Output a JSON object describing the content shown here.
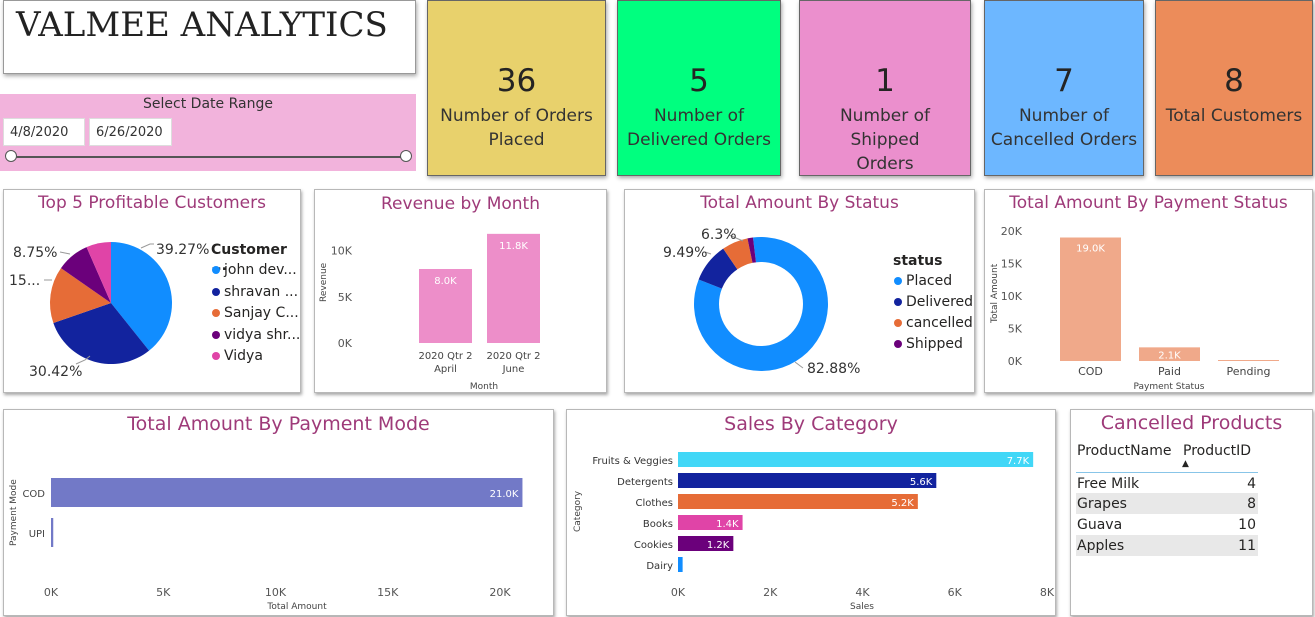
{
  "brand": {
    "title": "VALMEE ANALYTICS"
  },
  "date_range": {
    "label": "Select Date Range",
    "start": "4/8/2020",
    "end": "6/26/2020"
  },
  "kpis": [
    {
      "value": "36",
      "line1": "Number of Orders",
      "line2": "Placed",
      "color": "#e8d16c"
    },
    {
      "value": "5",
      "line1": "Number of",
      "line2": "Delivered Orders",
      "color": "#00ff7f"
    },
    {
      "value": "1",
      "line1": "Number of Shipped",
      "line2": "Orders",
      "color": "#eb8fcd"
    },
    {
      "value": "7",
      "line1": "Number of",
      "line2": "Cancelled Orders",
      "color": "#6db7ff"
    },
    {
      "value": "8",
      "line1": "Total Customers",
      "line2": "",
      "color": "#ec8c5a"
    }
  ],
  "top_customers": {
    "title": "Top 5 Profitable Customers",
    "legend_title": "Customer ...",
    "labels": {
      "l1": "39.27%",
      "l2": "30.42%",
      "l3": "15...",
      "l4": "8.75%"
    },
    "items": [
      {
        "name": "john dev...",
        "color": "#118dff"
      },
      {
        "name": "shravan ...",
        "color": "#12239e"
      },
      {
        "name": "Sanjay C...",
        "color": "#e66c37"
      },
      {
        "name": "vidya shr...",
        "color": "#6b007b"
      },
      {
        "name": "Vidya",
        "color": "#e044a7"
      }
    ]
  },
  "chart_data": [
    {
      "type": "pie",
      "title": "Top 5 Profitable Customers",
      "categories": [
        "john dev...",
        "shravan ...",
        "Sanjay C...",
        "vidya shr...",
        "Vidya"
      ],
      "values": [
        39.27,
        30.42,
        15.0,
        8.75,
        6.56
      ],
      "legend": "right"
    },
    {
      "type": "bar",
      "title": "Revenue by Month",
      "categories": [
        "2020 Qtr 2 April",
        "2020 Qtr 2 June"
      ],
      "values": [
        8.0,
        11.8
      ],
      "data_labels": [
        "8.0K",
        "11.8K"
      ],
      "xlabel": "Month",
      "ylabel": "Revenue",
      "ylim": [
        0,
        12
      ],
      "ticks": [
        "0K",
        "5K",
        "10K"
      ]
    },
    {
      "type": "pie",
      "title": "Total Amount By Status",
      "categories": [
        "Placed",
        "Delivered",
        "cancelled",
        "Shipped"
      ],
      "values": [
        82.88,
        9.49,
        6.3,
        1.33
      ],
      "legend": "right"
    },
    {
      "type": "bar",
      "title": "Total Amount By Payment Status",
      "categories": [
        "COD",
        "Paid",
        "Pending"
      ],
      "values": [
        19.0,
        2.1,
        0.1
      ],
      "data_labels": [
        "19.0K",
        "2.1K",
        ""
      ],
      "xlabel": "Payment Status",
      "ylabel": "Total Amount",
      "ylim": [
        0,
        20
      ],
      "ticks": [
        "0K",
        "5K",
        "10K",
        "15K",
        "20K"
      ]
    },
    {
      "type": "bar",
      "title": "Total Amount By Payment Mode",
      "categories": [
        "COD",
        "UPI"
      ],
      "values": [
        21.0,
        0.1
      ],
      "data_labels": [
        "21.0K",
        ""
      ],
      "xlabel": "Total Amount",
      "ylabel": "Payment Mode",
      "xlim": [
        0,
        22
      ],
      "ticks": [
        "0K",
        "5K",
        "10K",
        "15K",
        "20K"
      ]
    },
    {
      "type": "bar",
      "title": "Sales By Category",
      "categories": [
        "Fruits & Veggies",
        "Detergents",
        "Clothes",
        "Books",
        "Cookies",
        "Dairy"
      ],
      "values": [
        7.7,
        5.6,
        5.2,
        1.4,
        1.2,
        0.1
      ],
      "data_labels": [
        "7.7K",
        "5.6K",
        "5.2K",
        "1.4K",
        "1.2K",
        ""
      ],
      "xlabel": "Sales",
      "ylabel": "Category",
      "xlim": [
        0,
        8
      ],
      "ticks": [
        "0K",
        "2K",
        "4K",
        "6K",
        "8K"
      ]
    }
  ],
  "revenue": {
    "title": "Revenue by Month",
    "ylabel": "Revenue",
    "xlabel": "Month",
    "ticks": [
      "0K",
      "5K",
      "10K"
    ],
    "bars": [
      {
        "l1": "2020 Qtr 2",
        "l2": "April",
        "value": 8.0,
        "label": "8.0K"
      },
      {
        "l1": "2020 Qtr 2",
        "l2": "June",
        "value": 11.8,
        "label": "11.8K"
      }
    ],
    "color": "#ed8ec9"
  },
  "status": {
    "title": "Total Amount By Status",
    "legend_title": "status",
    "labels": {
      "placed": "82.88%",
      "delivered": "9.49%",
      "cancelled": "6.3%"
    },
    "items": [
      {
        "name": "Placed",
        "value": 82.88,
        "color": "#118dff"
      },
      {
        "name": "Delivered",
        "value": 9.49,
        "color": "#12239e"
      },
      {
        "name": "cancelled",
        "value": 6.3,
        "color": "#e66c37"
      },
      {
        "name": "Shipped",
        "value": 1.33,
        "color": "#6b007b"
      }
    ]
  },
  "payment_status": {
    "title": "Total Amount By Payment Status",
    "ylabel": "Total Amount",
    "xlabel": "Payment Status",
    "ticks": [
      "0K",
      "5K",
      "10K",
      "15K",
      "20K"
    ],
    "color": "#f0a98a",
    "bars": [
      {
        "name": "COD",
        "value": 19.0,
        "label": "19.0K"
      },
      {
        "name": "Paid",
        "value": 2.1,
        "label": "2.1K"
      },
      {
        "name": "Pending",
        "value": 0.1,
        "label": ""
      }
    ]
  },
  "payment_mode": {
    "title": "Total Amount By Payment Mode",
    "ylabel": "Payment Mode",
    "xlabel": "Total Amount",
    "ticks": [
      "0K",
      "5K",
      "10K",
      "15K",
      "20K"
    ],
    "color": "#7279c7",
    "bars": [
      {
        "name": "COD",
        "value": 21.0,
        "label": "21.0K"
      },
      {
        "name": "UPI",
        "value": 0.1,
        "label": ""
      }
    ]
  },
  "category": {
    "title": "Sales By Category",
    "ylabel": "Category",
    "xlabel": "Sales",
    "ticks": [
      "0K",
      "2K",
      "4K",
      "6K",
      "8K"
    ],
    "bars": [
      {
        "name": "Fruits & Veggies",
        "value": 7.7,
        "label": "7.7K",
        "color": "#41d7f7"
      },
      {
        "name": "Detergents",
        "value": 5.6,
        "label": "5.6K",
        "color": "#12239e"
      },
      {
        "name": "Clothes",
        "value": 5.2,
        "label": "5.2K",
        "color": "#e66c37"
      },
      {
        "name": "Books",
        "value": 1.4,
        "label": "1.4K",
        "color": "#e044a7"
      },
      {
        "name": "Cookies",
        "value": 1.2,
        "label": "1.2K",
        "color": "#6b007b"
      },
      {
        "name": "Dairy",
        "value": 0.1,
        "label": "",
        "color": "#118dff"
      }
    ]
  },
  "cancelled": {
    "title": "Cancelled Products",
    "col1": "ProductName",
    "col2": "ProductID",
    "rows": [
      {
        "name": "Free Milk",
        "id": "4"
      },
      {
        "name": "Grapes",
        "id": "8"
      },
      {
        "name": "Guava",
        "id": "10"
      },
      {
        "name": "Apples",
        "id": "11"
      }
    ]
  }
}
